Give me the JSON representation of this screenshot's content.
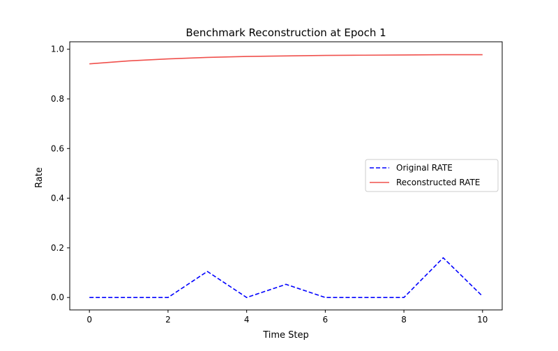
{
  "chart_data": {
    "type": "line",
    "title": "Benchmark Reconstruction at Epoch 1",
    "xlabel": "Time Step",
    "ylabel": "Rate",
    "xlim": [
      -0.5,
      10.5
    ],
    "ylim": [
      -0.05,
      1.03
    ],
    "xticks": [
      0,
      2,
      4,
      6,
      8,
      10
    ],
    "xtick_labels": [
      "0",
      "2",
      "4",
      "6",
      "8",
      "10"
    ],
    "yticks": [
      0.0,
      0.2,
      0.4,
      0.6,
      0.8,
      1.0
    ],
    "ytick_labels": [
      "0.0",
      "0.2",
      "0.4",
      "0.6",
      "0.8",
      "1.0"
    ],
    "grid": false,
    "legend_position": "center-right",
    "x": [
      0,
      1,
      2,
      3,
      4,
      5,
      6,
      7,
      8,
      9,
      10
    ],
    "series": [
      {
        "name": "Original RATE",
        "color": "#0000ff",
        "style": "dashed",
        "values": [
          0.0,
          0.0,
          0.0,
          0.105,
          0.0,
          0.053,
          0.0,
          0.0,
          0.0,
          0.16,
          0.005
        ]
      },
      {
        "name": "Reconstructed RATE",
        "color": "#f0504c",
        "style": "solid",
        "values": [
          0.941,
          0.953,
          0.961,
          0.967,
          0.971,
          0.973,
          0.975,
          0.976,
          0.977,
          0.978,
          0.978
        ]
      }
    ]
  }
}
